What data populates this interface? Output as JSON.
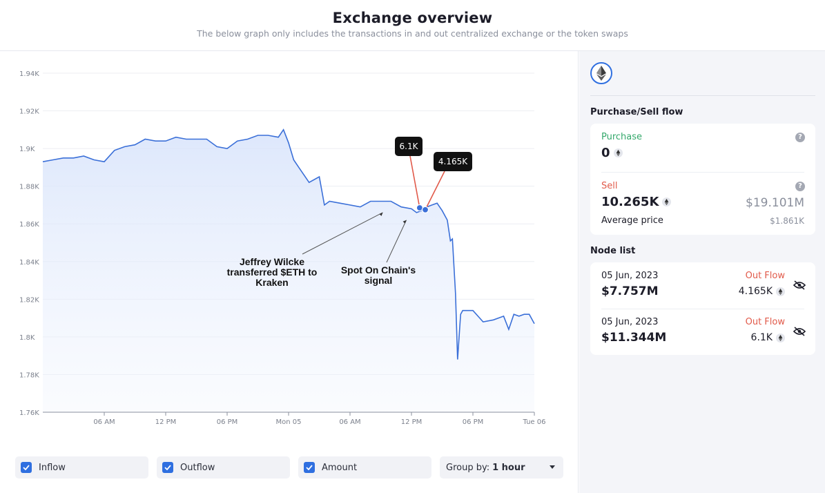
{
  "header": {
    "title": "Exchange overview",
    "subtitle": "The below graph only includes the transactions in and out centralized exchange or the token swaps"
  },
  "chart_data": {
    "type": "area",
    "ylim": [
      1760,
      1940
    ],
    "y_ticks": [
      {
        "v": 1760,
        "label": "1.76K"
      },
      {
        "v": 1780,
        "label": "1.78K"
      },
      {
        "v": 1800,
        "label": "1.8K"
      },
      {
        "v": 1820,
        "label": "1.82K"
      },
      {
        "v": 1840,
        "label": "1.84K"
      },
      {
        "v": 1860,
        "label": "1.86K"
      },
      {
        "v": 1880,
        "label": "1.88K"
      },
      {
        "v": 1900,
        "label": "1.9K"
      },
      {
        "v": 1920,
        "label": "1.92K"
      },
      {
        "v": 1940,
        "label": "1.94K"
      }
    ],
    "xlim": [
      0,
      48
    ],
    "x_ticks": [
      {
        "t": 6,
        "label": "06 AM"
      },
      {
        "t": 12,
        "label": "12 PM"
      },
      {
        "t": 18,
        "label": "06 PM"
      },
      {
        "t": 24,
        "label": "Mon 05"
      },
      {
        "t": 30,
        "label": "06 AM"
      },
      {
        "t": 36,
        "label": "12 PM"
      },
      {
        "t": 42,
        "label": "06 PM"
      },
      {
        "t": 48,
        "label": "Tue 06"
      }
    ],
    "series": [
      {
        "color": "#3a6fd8",
        "points": [
          [
            0,
            1893
          ],
          [
            1,
            1894
          ],
          [
            2,
            1895
          ],
          [
            3,
            1895
          ],
          [
            4,
            1896
          ],
          [
            5,
            1894
          ],
          [
            6,
            1893
          ],
          [
            7,
            1899
          ],
          [
            8,
            1901
          ],
          [
            9,
            1902
          ],
          [
            10,
            1905
          ],
          [
            11,
            1904
          ],
          [
            12,
            1904
          ],
          [
            13,
            1906
          ],
          [
            14,
            1905
          ],
          [
            15,
            1905
          ],
          [
            16,
            1905
          ],
          [
            17,
            1901
          ],
          [
            18,
            1900
          ],
          [
            19,
            1904
          ],
          [
            20,
            1905
          ],
          [
            21,
            1907
          ],
          [
            22,
            1907
          ],
          [
            23,
            1906
          ],
          [
            23.5,
            1910
          ],
          [
            24,
            1903
          ],
          [
            24.5,
            1894
          ],
          [
            25,
            1890
          ],
          [
            26,
            1882
          ],
          [
            27,
            1885
          ],
          [
            27.5,
            1870
          ],
          [
            28,
            1872
          ],
          [
            29,
            1871
          ],
          [
            30,
            1870
          ],
          [
            31,
            1869
          ],
          [
            32,
            1872
          ],
          [
            33,
            1872
          ],
          [
            34,
            1872
          ],
          [
            35,
            1869
          ],
          [
            36,
            1868
          ],
          [
            36.5,
            1866
          ],
          [
            37,
            1867
          ],
          [
            37.5,
            1869
          ],
          [
            38,
            1870
          ],
          [
            38.5,
            1871
          ],
          [
            39,
            1867
          ],
          [
            39.5,
            1862
          ],
          [
            39.8,
            1851
          ],
          [
            40,
            1852
          ],
          [
            40.3,
            1823
          ],
          [
            40.5,
            1788
          ],
          [
            40.8,
            1812
          ],
          [
            41,
            1814
          ],
          [
            41.5,
            1814
          ],
          [
            42,
            1814
          ],
          [
            43,
            1808
          ],
          [
            44,
            1809
          ],
          [
            45,
            1811
          ],
          [
            45.5,
            1804
          ],
          [
            46,
            1812
          ],
          [
            46.5,
            1811
          ],
          [
            47,
            1812
          ],
          [
            47.5,
            1812
          ],
          [
            48,
            1807
          ]
        ]
      }
    ],
    "markers": [
      {
        "t": 36.8,
        "v": 1868.5,
        "label": "6.1K"
      },
      {
        "t": 37.35,
        "v": 1867.5,
        "label": "4.165K"
      }
    ],
    "annotations": [
      {
        "text": "Jeffrey Wilcke transferred $ETH to Kraken",
        "target_t": 33.2,
        "target_v": 1866
      },
      {
        "text": "Spot On Chain's signal",
        "target_t": 35.5,
        "target_v": 1862
      }
    ]
  },
  "controls": {
    "inflow_label": "Inflow",
    "outflow_label": "Outflow",
    "amount_label": "Amount",
    "group_by_label": "Group by:",
    "group_by_value": "1 hour"
  },
  "sidebar": {
    "token_icon": "ethereum-icon",
    "flow_title": "Purchase/Sell flow",
    "purchase_label": "Purchase",
    "purchase_value": "0",
    "sell_label": "Sell",
    "sell_value": "10.265K",
    "sell_usd": "$19.101M",
    "avg_price_label": "Average price",
    "avg_price_value": "$1.861K",
    "node_list_title": "Node list",
    "nodes": [
      {
        "date": "05 Jun, 2023",
        "usd": "$7.757M",
        "flow": "Out Flow",
        "amount": "4.165K"
      },
      {
        "date": "05 Jun, 2023",
        "usd": "$11.344M",
        "flow": "Out Flow",
        "amount": "6.1K"
      }
    ],
    "colors": {
      "purchase": "#34a86b",
      "sell": "#e15a4a",
      "accent": "#2f6fe0"
    }
  }
}
